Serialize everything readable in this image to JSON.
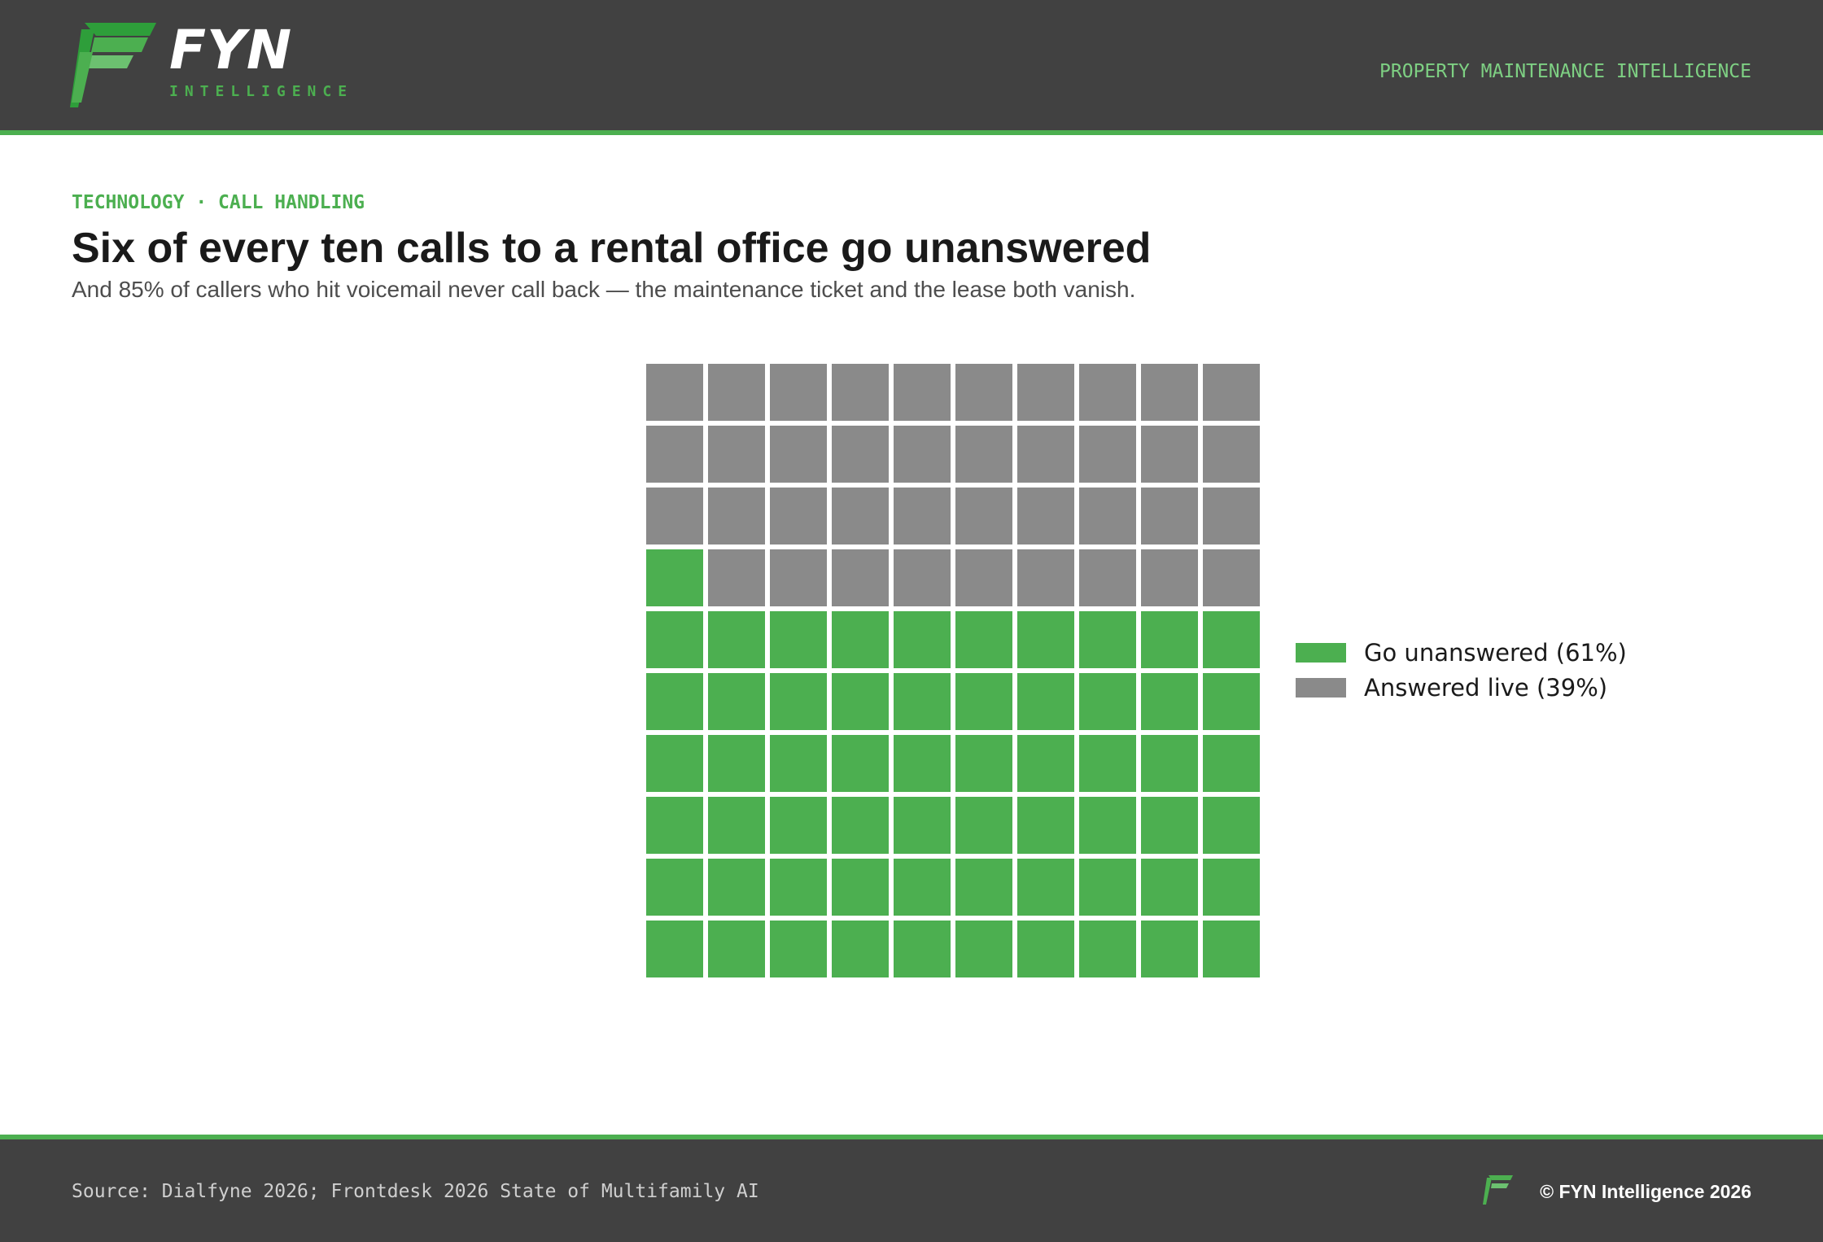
{
  "brand": {
    "name": "FYN",
    "subtitle": "INTELLIGENCE",
    "tagline": "PROPERTY MAINTENANCE INTELLIGENCE"
  },
  "kicker": "TECHNOLOGY · CALL HANDLING",
  "colors": {
    "green": "#4caf50",
    "grey": "#8a8a8a",
    "dark": "#414141"
  },
  "chart_data": {
    "type": "waffle",
    "title": "Six of every ten calls to a rental office go unanswered",
    "subtitle": "And 85% of callers who hit voicemail never call back — the maintenance ticket and the lease both vanish.",
    "total_cells": 100,
    "grid": {
      "rows": 10,
      "cols": 10
    },
    "series": [
      {
        "name": "Go unanswered (61%)",
        "value": 61,
        "color": "#4caf50"
      },
      {
        "name": "Answered live (39%)",
        "value": 39,
        "color": "#8a8a8a"
      }
    ],
    "legend_position": "right"
  },
  "footer": {
    "source": "Source: Dialfyne 2026; Frontdesk 2026 State of Multifamily AI",
    "copyright": "© FYN Intelligence 2026"
  }
}
